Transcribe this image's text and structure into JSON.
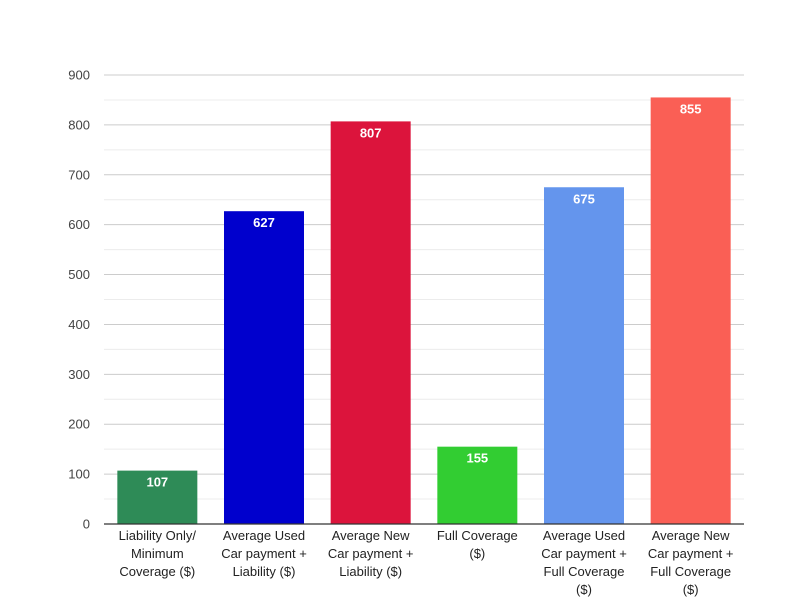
{
  "chart_data": {
    "type": "bar",
    "title": "",
    "xlabel": "",
    "ylabel": "",
    "ylim": [
      0,
      900
    ],
    "yticks": [
      0,
      100,
      200,
      300,
      400,
      500,
      600,
      700,
      800,
      900
    ],
    "grid": true,
    "legend": "none",
    "categories": [
      [
        "Liability Only/",
        "Minimum",
        "Coverage ($)"
      ],
      [
        "Average Used",
        "Car payment +",
        "Liability ($)"
      ],
      [
        "Average New",
        "Car payment +",
        "Liability ($)"
      ],
      [
        "Full Coverage",
        "($)"
      ],
      [
        "Average Used",
        "Car payment +",
        "Full Coverage",
        "($)"
      ],
      [
        "Average New",
        "Car payment +",
        "Full Coverage",
        "($)"
      ]
    ],
    "values": [
      107,
      627,
      807,
      155,
      675,
      855
    ],
    "colors": [
      "#2e8b57",
      "#0000cd",
      "#dc143c",
      "#32cd32",
      "#6495ed",
      "#fa5f55"
    ]
  }
}
